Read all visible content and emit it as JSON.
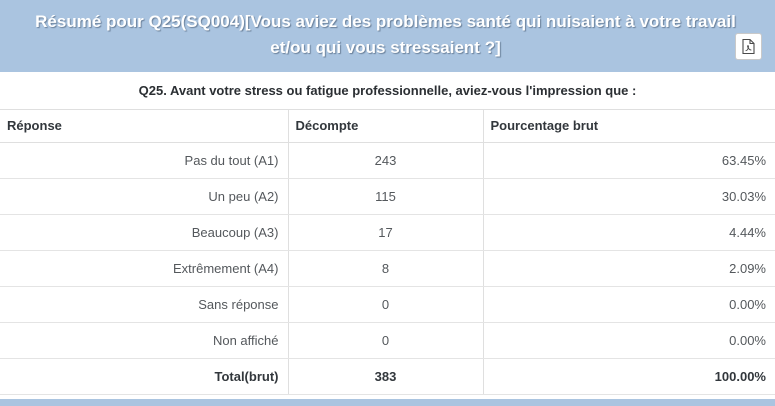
{
  "header": {
    "title": "Résumé pour Q25(SQ004)[Vous aviez des problèmes santé qui nuisaient à votre travail et/ou qui vous stressaient ?]",
    "pdf_button_icon": "file-pdf-icon"
  },
  "question": {
    "text": "Q25. Avant votre stress ou fatigue professionnelle, aviez-vous l'impression que :"
  },
  "table": {
    "columns": [
      "Réponse",
      "Décompte",
      "Pourcentage brut"
    ],
    "rows": [
      {
        "label": "Pas du tout (A1)",
        "count": "243",
        "percent": "63.45%",
        "bold": false
      },
      {
        "label": "Un peu (A2)",
        "count": "115",
        "percent": "30.03%",
        "bold": false
      },
      {
        "label": "Beaucoup (A3)",
        "count": "17",
        "percent": "4.44%",
        "bold": false
      },
      {
        "label": "Extrêmement (A4)",
        "count": "8",
        "percent": "2.09%",
        "bold": false
      },
      {
        "label": "Sans réponse",
        "count": "0",
        "percent": "0.00%",
        "bold": false
      },
      {
        "label": "Non affiché",
        "count": "0",
        "percent": "0.00%",
        "bold": false
      },
      {
        "label": "Total(brut)",
        "count": "383",
        "percent": "100.00%",
        "bold": true
      }
    ]
  },
  "colors": {
    "panel_accent": "#aac4e0",
    "header_text": "#ffffff",
    "table_border": "#dfdfdf",
    "body_text": "#54585c"
  }
}
